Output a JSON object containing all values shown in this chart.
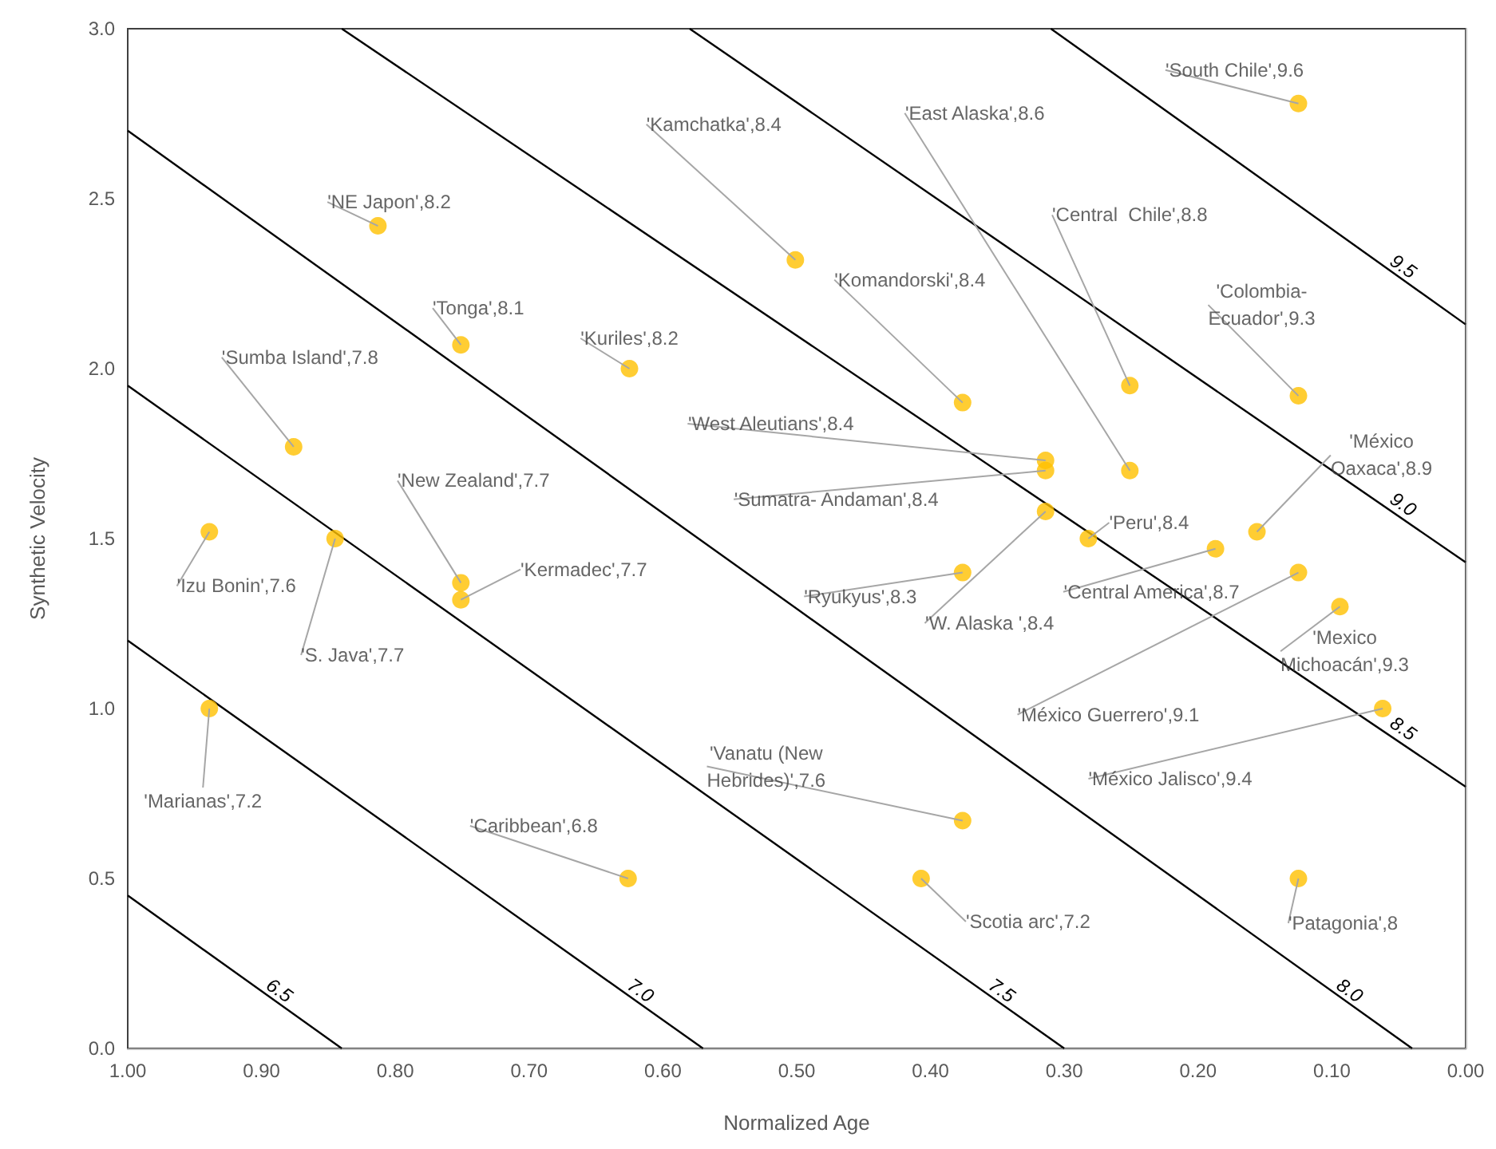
{
  "chart_data": {
    "type": "scatter",
    "xlabel": "Normalized Age",
    "ylabel": "Synthetic Velocity",
    "xlim": [
      1,
      0
    ],
    "ylim": [
      0,
      3
    ],
    "xticks": [
      {
        "value": 1,
        "label": "1.00"
      },
      {
        "value": 0.9,
        "label": "0.90"
      },
      {
        "value": 0.8,
        "label": "0.80"
      },
      {
        "value": 0.7,
        "label": "0.70"
      },
      {
        "value": 0.6,
        "label": "0.60"
      },
      {
        "value": 0.5,
        "label": "0.50"
      },
      {
        "value": 0.4,
        "label": "0.40"
      },
      {
        "value": 0.3,
        "label": "0.30"
      },
      {
        "value": 0.2,
        "label": "0.20"
      },
      {
        "value": 0.1,
        "label": "0.10"
      },
      {
        "value": 0,
        "label": "0.00"
      }
    ],
    "yticks": [
      {
        "value": 0,
        "label": "0.0"
      },
      {
        "value": 0.5,
        "label": "0.5"
      },
      {
        "value": 1,
        "label": "1.0"
      },
      {
        "value": 1.5,
        "label": "1.5"
      },
      {
        "value": 2,
        "label": "2.0"
      },
      {
        "value": 2.5,
        "label": "2.5"
      },
      {
        "value": 3,
        "label": "3.0"
      }
    ],
    "grid": false,
    "legend": false,
    "annotations": [
      {
        "text": "'South Chile',9.6",
        "x": 0.125,
        "y": 2.78
      },
      {
        "text": "'NE Japon',8.2",
        "x": 0.813,
        "y": 2.42
      },
      {
        "text": "'Kamchatka',8.4",
        "x": 0.501,
        "y": 2.32
      },
      {
        "text": "'Tonga',8.1",
        "x": 0.751,
        "y": 2.07
      },
      {
        "text": "'Kuriles',8.2",
        "x": 0.625,
        "y": 2.0
      },
      {
        "text": "'Komandorski',8.4",
        "x": 0.376,
        "y": 1.9
      },
      {
        "text": "'Central  Chile',8.8",
        "x": 0.251,
        "y": 1.95
      },
      {
        "text": "'Colombia-\nEcuador',9.3",
        "x": 0.125,
        "y": 1.92
      },
      {
        "text": "'Sumba Island',7.8",
        "x": 0.876,
        "y": 1.77
      },
      {
        "text": "'West Aleutians',8.4",
        "x": 0.314,
        "y": 1.73
      },
      {
        "text": "'Sumatra- Andaman',8.4",
        "x": 0.314,
        "y": 1.7
      },
      {
        "text": "'East Alaska',8.6",
        "x": 0.251,
        "y": 1.7
      },
      {
        "text": "'W. Alaska ',8.4",
        "x": 0.314,
        "y": 1.58
      },
      {
        "text": "'Izu Bonin',7.6",
        "x": 0.939,
        "y": 1.52
      },
      {
        "text": "'S. Java',7.7",
        "x": 0.845,
        "y": 1.5
      },
      {
        "text": "'Peru',8.4",
        "x": 0.282,
        "y": 1.5
      },
      {
        "text": "'México\nOaxaca',8.9",
        "x": 0.156,
        "y": 1.52
      },
      {
        "text": "'New Zealand',7.7",
        "x": 0.751,
        "y": 1.37
      },
      {
        "text": "'Kermadec',7.7",
        "x": 0.751,
        "y": 1.32
      },
      {
        "text": "'Central America',8.7",
        "x": 0.187,
        "y": 1.47
      },
      {
        "text": "'Ryukyus',8.3",
        "x": 0.376,
        "y": 1.4
      },
      {
        "text": "'México Guerrero',9.1",
        "x": 0.125,
        "y": 1.4
      },
      {
        "text": "'Mexico\nMichoacán',9.3",
        "x": 0.094,
        "y": 1.3
      },
      {
        "text": "'México Jalisco',9.4",
        "x": 0.062,
        "y": 1.0
      },
      {
        "text": "'Marianas',7.2",
        "x": 0.939,
        "y": 1.0
      },
      {
        "text": "'Vanatu (New\nHebrides)',7.6",
        "x": 0.376,
        "y": 0.67
      },
      {
        "text": "'Caribbean',6.8",
        "x": 0.626,
        "y": 0.5
      },
      {
        "text": "'Scotia arc',7.2",
        "x": 0.407,
        "y": 0.5
      },
      {
        "text": "'Patagonia',8",
        "x": 0.125,
        "y": 0.5
      }
    ],
    "series": [
      {
        "marker": "circle",
        "color": "#ffc000",
        "x": [
          0.125,
          0.813,
          0.501,
          0.751,
          0.625,
          0.376,
          0.251,
          0.125,
          0.876,
          0.314,
          0.314,
          0.251,
          0.314,
          0.939,
          0.845,
          0.282,
          0.156,
          0.751,
          0.751,
          0.187,
          0.376,
          0.125,
          0.094,
          0.062,
          0.939,
          0.376,
          0.626,
          0.407,
          0.125
        ],
        "values": [
          2.78,
          2.42,
          2.32,
          2.07,
          2.0,
          1.9,
          1.95,
          1.92,
          1.77,
          1.73,
          1.7,
          1.7,
          1.58,
          1.52,
          1.5,
          1.5,
          1.52,
          1.37,
          1.32,
          1.47,
          1.4,
          1.4,
          1.3,
          1.0,
          1.0,
          0.67,
          0.5,
          0.5,
          0.5
        ]
      },
      {
        "type": "line",
        "name": "6.5",
        "color": "#000000",
        "x": [
          1,
          0.84
        ],
        "values": [
          0.45,
          0
        ]
      },
      {
        "type": "line",
        "name": "7.0",
        "color": "#000000",
        "x": [
          1,
          0.57
        ],
        "values": [
          1.2,
          0
        ]
      },
      {
        "type": "line",
        "name": "7.5",
        "color": "#000000",
        "x": [
          1,
          0.3
        ],
        "values": [
          1.95,
          0
        ]
      },
      {
        "type": "line",
        "name": "8.0",
        "color": "#000000",
        "x": [
          1,
          0.04
        ],
        "values": [
          2.7,
          0
        ]
      },
      {
        "type": "line",
        "name": "8.5",
        "color": "#000000",
        "x": [
          0.84,
          0
        ],
        "values": [
          3,
          0.77
        ]
      },
      {
        "type": "line",
        "name": "9.0",
        "color": "#000000",
        "x": [
          0.58,
          0
        ],
        "values": [
          3,
          1.43
        ]
      },
      {
        "type": "line",
        "name": "9.5",
        "color": "#000000",
        "x": [
          0.31,
          0
        ],
        "values": [
          3,
          2.13
        ]
      }
    ]
  }
}
